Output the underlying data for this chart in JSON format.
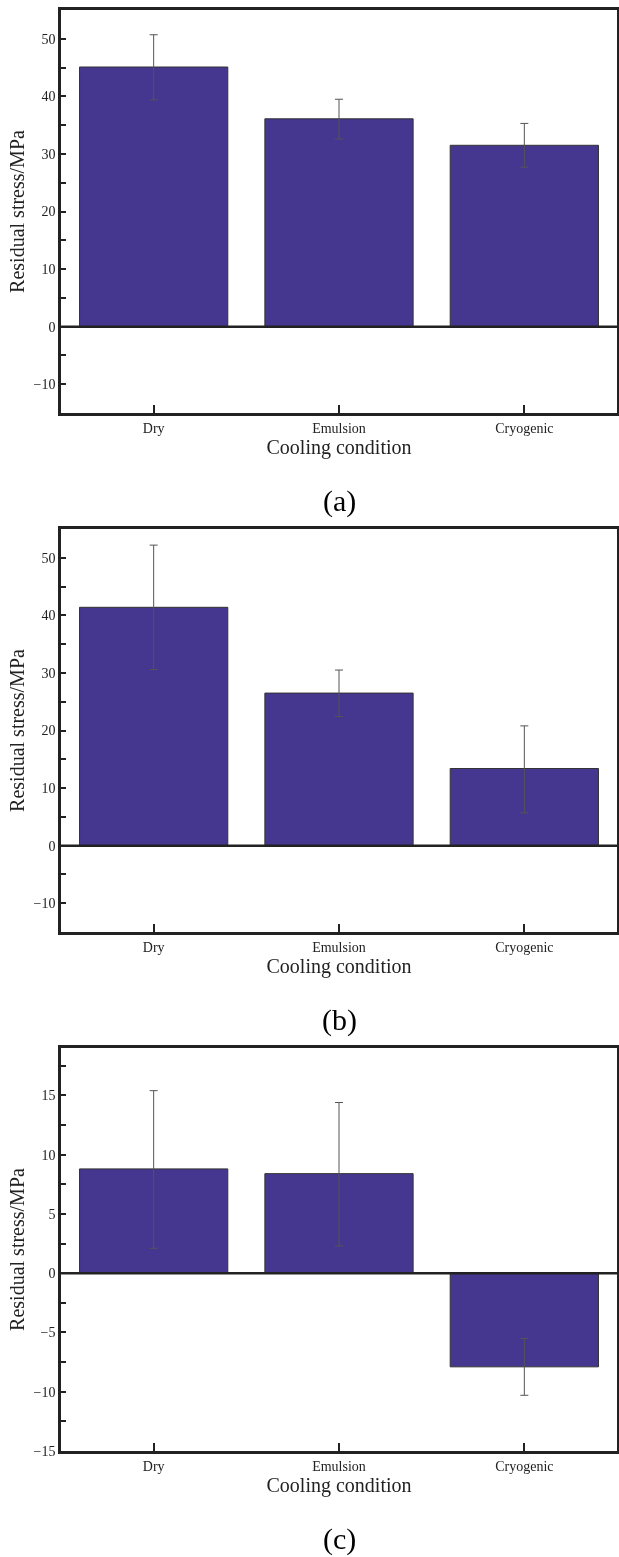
{
  "chart_data": [
    {
      "type": "bar",
      "categories": [
        "Dry",
        "Emulsion",
        "Cryogenic"
      ],
      "values": [
        45.1,
        36.1,
        31.5
      ],
      "errors": [
        [
          39.4,
          50.7
        ],
        [
          32.6,
          39.5
        ],
        [
          27.7,
          35.3
        ]
      ],
      "color": "#45368f",
      "xlabel": "Cooling condition",
      "ylabel": "Residual stress/MPa",
      "annotations": [
        "(a)"
      ],
      "ylim": [
        -15,
        55
      ],
      "yticks": [
        {
          "value": -15,
          "label": null
        },
        -10,
        {
          "value": -5,
          "label": null
        },
        0,
        {
          "value": 5,
          "label": null
        },
        10,
        {
          "value": 15,
          "label": null
        },
        20,
        {
          "value": 25,
          "label": null
        },
        30,
        {
          "value": 35,
          "label": null
        },
        40,
        {
          "value": 45,
          "label": null
        },
        50
      ],
      "ref_lines": [
        {
          "axis": "y",
          "value": 0,
          "label": null
        }
      ]
    },
    {
      "type": "bar",
      "categories": [
        "Dry",
        "Emulsion",
        "Cryogenic"
      ],
      "values": [
        41.4,
        26.5,
        13.4
      ],
      "errors": [
        [
          30.6,
          52.2
        ],
        [
          22.4,
          30.5
        ],
        [
          5.7,
          20.8
        ]
      ],
      "color": "#45368f",
      "xlabel": "Cooling condition",
      "ylabel": "Residual stress/MPa",
      "annotations": [
        "(b)"
      ],
      "ylim": [
        -15,
        55
      ],
      "yticks": [
        {
          "value": -15,
          "label": null
        },
        -10,
        {
          "value": -5,
          "label": null
        },
        0,
        {
          "value": 5,
          "label": null
        },
        10,
        {
          "value": 15,
          "label": null
        },
        20,
        {
          "value": 25,
          "label": null
        },
        30,
        {
          "value": 35,
          "label": null
        },
        40,
        {
          "value": 45,
          "label": null
        },
        50
      ],
      "ref_lines": [
        {
          "axis": "y",
          "value": 0,
          "label": null
        }
      ]
    },
    {
      "type": "bar",
      "categories": [
        "Dry",
        "Emulsion",
        "Cryogenic"
      ],
      "values": [
        8.8,
        8.4,
        -7.9
      ],
      "errors": [
        [
          2.1,
          15.4
        ],
        [
          2.3,
          14.4
        ],
        [
          -10.3,
          -5.5
        ]
      ],
      "color": "#45368f",
      "xlabel": "Cooling condition",
      "ylabel": "Residual stress/MPa",
      "annotations": [
        "(c)"
      ],
      "ylim": [
        -15,
        19
      ],
      "yticks": [
        -15,
        {
          "value": -12.5,
          "label": null
        },
        -10,
        {
          "value": -7.5,
          "label": null
        },
        -5,
        {
          "value": -2.5,
          "label": null
        },
        0,
        {
          "value": 2.5,
          "label": null
        },
        5,
        {
          "value": 7.5,
          "label": null
        },
        10,
        {
          "value": 12.5,
          "label": null
        },
        15,
        {
          "value": 17.5,
          "label": null
        }
      ],
      "ref_lines": [
        {
          "axis": "y",
          "value": 0,
          "label": null
        }
      ]
    }
  ]
}
